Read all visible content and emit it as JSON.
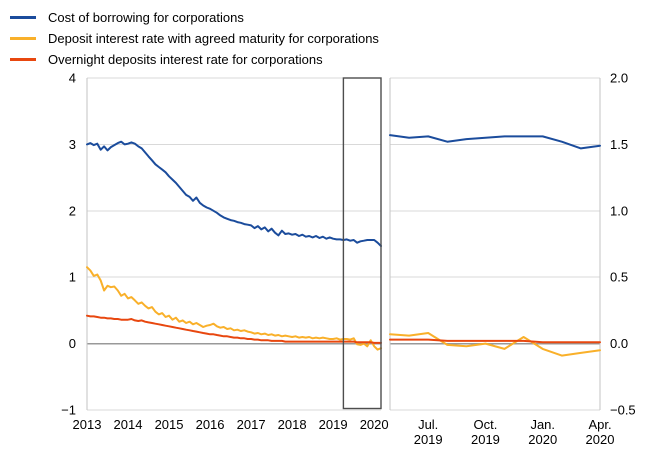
{
  "legend": {
    "items": [
      {
        "label": "Cost of borrowing for corporations",
        "color": "#1b4c9c"
      },
      {
        "label": "Deposit interest rate with agreed maturity for corporations",
        "color": "#f9b02a"
      },
      {
        "label": "Overnight deposits interest rate for corporations",
        "color": "#e8470f"
      }
    ]
  },
  "colors": {
    "background": "#ffffff",
    "grid": "#d9d9d9",
    "zero_line": "#999999",
    "axis_border": "#c3c3c3",
    "zoom_box_border": "#4d4d4d",
    "text": "#000000"
  },
  "chart_data": [
    {
      "type": "line",
      "panel": "left",
      "x_unit": "monthly",
      "x_range": [
        "2013-01",
        "2020-03"
      ],
      "ylim": [
        -1,
        4
      ],
      "grid": true,
      "y_ticks": [
        {
          "label": "4",
          "value": 4
        },
        {
          "label": "3",
          "value": 3
        },
        {
          "label": "2",
          "value": 2
        },
        {
          "label": "1",
          "value": 1
        },
        {
          "label": "0",
          "value": 0
        },
        {
          "label": "−1",
          "value": -1
        }
      ],
      "x_tick_labels": [
        {
          "label": "2013",
          "month_index": 0
        },
        {
          "label": "2014",
          "month_index": 12
        },
        {
          "label": "2015",
          "month_index": 24
        },
        {
          "label": "2016",
          "month_index": 36
        },
        {
          "label": "2017",
          "month_index": 48
        },
        {
          "label": "2018",
          "month_index": 60
        },
        {
          "label": "2019",
          "month_index": 72
        },
        {
          "label": "2020",
          "month_index": 84
        }
      ],
      "zoom_region": {
        "start_month_index": 75,
        "end_month_index": 86
      },
      "series": [
        {
          "name": "Cost of borrowing for corporations",
          "color": "#1b4c9c",
          "values": [
            3.0,
            3.02,
            2.99,
            3.01,
            2.92,
            2.97,
            2.91,
            2.96,
            2.99,
            3.02,
            3.04,
            3.0,
            3.01,
            3.03,
            3.01,
            2.97,
            2.94,
            2.88,
            2.82,
            2.76,
            2.7,
            2.66,
            2.62,
            2.58,
            2.52,
            2.47,
            2.42,
            2.36,
            2.3,
            2.24,
            2.21,
            2.15,
            2.2,
            2.12,
            2.08,
            2.05,
            2.03,
            2.0,
            1.97,
            1.93,
            1.9,
            1.88,
            1.86,
            1.85,
            1.83,
            1.82,
            1.8,
            1.79,
            1.78,
            1.74,
            1.77,
            1.72,
            1.75,
            1.69,
            1.73,
            1.67,
            1.63,
            1.7,
            1.65,
            1.66,
            1.64,
            1.65,
            1.62,
            1.64,
            1.61,
            1.62,
            1.6,
            1.62,
            1.59,
            1.61,
            1.58,
            1.6,
            1.58,
            1.57,
            1.57,
            1.56,
            1.57,
            1.55,
            1.56,
            1.52,
            1.54,
            1.55,
            1.56,
            1.56,
            1.56,
            1.52,
            1.47
          ]
        },
        {
          "name": "Deposit interest rate with agreed maturity for corporations",
          "color": "#f9b02a",
          "values": [
            1.15,
            1.1,
            1.02,
            1.04,
            0.95,
            0.8,
            0.87,
            0.85,
            0.86,
            0.8,
            0.72,
            0.75,
            0.68,
            0.7,
            0.65,
            0.6,
            0.62,
            0.57,
            0.53,
            0.55,
            0.48,
            0.44,
            0.46,
            0.4,
            0.42,
            0.36,
            0.39,
            0.33,
            0.35,
            0.31,
            0.33,
            0.29,
            0.31,
            0.28,
            0.25,
            0.27,
            0.28,
            0.3,
            0.26,
            0.24,
            0.25,
            0.22,
            0.23,
            0.2,
            0.21,
            0.19,
            0.2,
            0.18,
            0.17,
            0.15,
            0.16,
            0.14,
            0.15,
            0.13,
            0.14,
            0.12,
            0.13,
            0.11,
            0.12,
            0.11,
            0.1,
            0.11,
            0.09,
            0.1,
            0.09,
            0.1,
            0.08,
            0.09,
            0.08,
            0.09,
            0.08,
            0.07,
            0.07,
            0.08,
            0.06,
            0.07,
            0.07,
            0.06,
            0.08,
            -0.01,
            -0.02,
            0.0,
            -0.04,
            0.05,
            -0.04,
            -0.09,
            -0.07
          ]
        },
        {
          "name": "Overnight deposits interest rate for corporations",
          "color": "#e8470f",
          "values": [
            0.42,
            0.41,
            0.41,
            0.4,
            0.39,
            0.39,
            0.38,
            0.38,
            0.37,
            0.37,
            0.36,
            0.36,
            0.36,
            0.37,
            0.35,
            0.34,
            0.35,
            0.33,
            0.32,
            0.31,
            0.3,
            0.29,
            0.28,
            0.27,
            0.26,
            0.25,
            0.24,
            0.23,
            0.22,
            0.21,
            0.2,
            0.19,
            0.18,
            0.17,
            0.16,
            0.15,
            0.14,
            0.14,
            0.13,
            0.12,
            0.11,
            0.11,
            0.1,
            0.09,
            0.09,
            0.08,
            0.08,
            0.07,
            0.07,
            0.06,
            0.06,
            0.05,
            0.05,
            0.05,
            0.04,
            0.04,
            0.04,
            0.04,
            0.03,
            0.03,
            0.03,
            0.03,
            0.03,
            0.03,
            0.03,
            0.03,
            0.03,
            0.03,
            0.03,
            0.03,
            0.03,
            0.03,
            0.03,
            0.03,
            0.03,
            0.03,
            0.03,
            0.03,
            0.03,
            0.02,
            0.02,
            0.02,
            0.02,
            0.02,
            0.01,
            0.01,
            0.01
          ]
        }
      ]
    },
    {
      "type": "line",
      "panel": "right",
      "x_unit": "monthly",
      "x_range": [
        "2019-05",
        "2020-04"
      ],
      "ylim": [
        -0.5,
        2.0
      ],
      "grid": true,
      "y_ticks": [
        {
          "label": "2.0",
          "value": 2.0
        },
        {
          "label": "1.5",
          "value": 1.5
        },
        {
          "label": "1.0",
          "value": 1.0
        },
        {
          "label": "0.5",
          "value": 0.5
        },
        {
          "label": "0.0",
          "value": 0.0
        },
        {
          "label": "−0.5",
          "value": -0.5
        }
      ],
      "x_tick_labels": [
        {
          "line1": "Jul.",
          "line2": "2019",
          "month_index": 2
        },
        {
          "line1": "Oct.",
          "line2": "2019",
          "month_index": 5
        },
        {
          "line1": "Jan.",
          "line2": "2020",
          "month_index": 8
        },
        {
          "line1": "Apr.",
          "line2": "2020",
          "month_index": 11
        }
      ],
      "series": [
        {
          "name": "Cost of borrowing for corporations",
          "color": "#1b4c9c",
          "values": [
            1.57,
            1.55,
            1.56,
            1.52,
            1.54,
            1.55,
            1.56,
            1.56,
            1.56,
            1.52,
            1.47,
            1.49
          ]
        },
        {
          "name": "Deposit interest rate with agreed maturity for corporations",
          "color": "#f9b02a",
          "values": [
            0.07,
            0.06,
            0.08,
            -0.01,
            -0.02,
            0.0,
            -0.04,
            0.05,
            -0.04,
            -0.09,
            -0.07,
            -0.05
          ]
        },
        {
          "name": "Overnight deposits interest rate for corporations",
          "color": "#e8470f",
          "values": [
            0.03,
            0.03,
            0.03,
            0.02,
            0.02,
            0.02,
            0.02,
            0.02,
            0.01,
            0.01,
            0.01,
            0.01
          ]
        }
      ]
    }
  ]
}
